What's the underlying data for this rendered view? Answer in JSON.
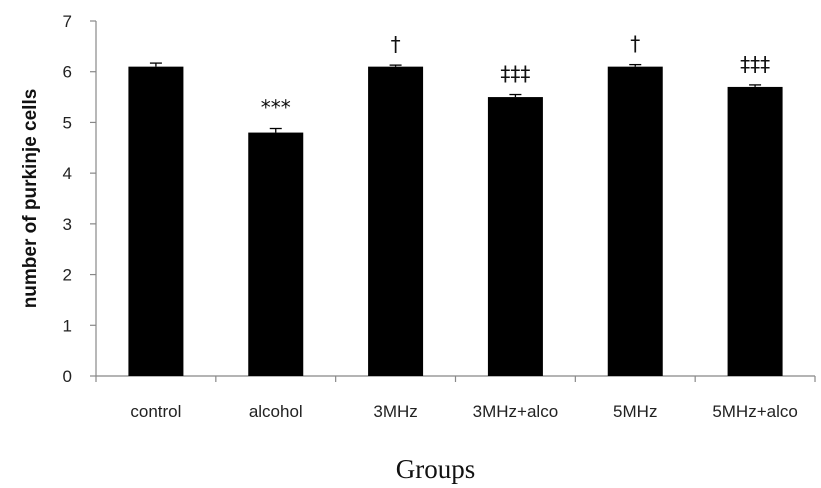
{
  "chart_data": {
    "type": "bar",
    "categories": [
      "control",
      "alcohol",
      "3MHz",
      "3MHz+alco",
      "5MHz",
      "5MHz+alco"
    ],
    "values": [
      6.1,
      4.8,
      6.1,
      5.5,
      6.1,
      5.7
    ],
    "errors": [
      0.07,
      0.08,
      0.03,
      0.05,
      0.04,
      0.04
    ],
    "annotations": [
      "",
      "***",
      "†",
      "‡‡‡",
      "†",
      "‡‡‡"
    ],
    "xlabel": "Groups",
    "ylabel": "number of purkinje cells",
    "ylim": [
      0,
      7
    ],
    "yticks": [
      0,
      1,
      2,
      3,
      4,
      5,
      6,
      7
    ],
    "grid": false,
    "legend": "none",
    "bar_color": "#000000"
  }
}
